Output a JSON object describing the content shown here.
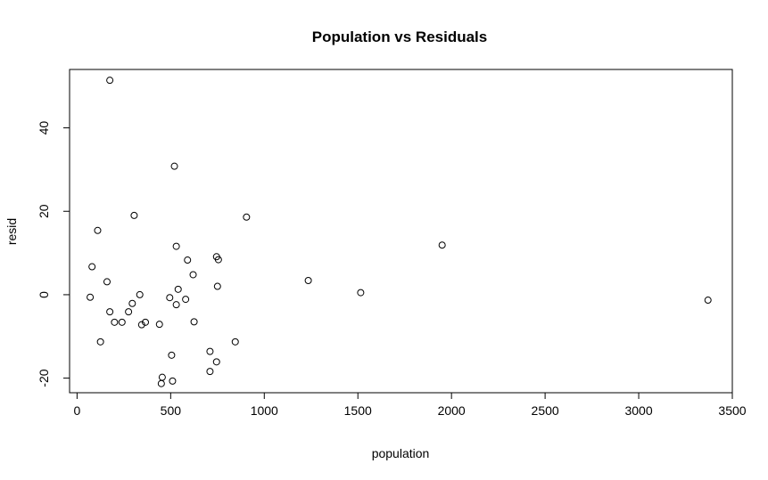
{
  "chart_data": {
    "type": "scatter",
    "title": "Population vs Residuals",
    "xlabel": "population",
    "ylabel": "resid",
    "xlim": [
      -40,
      3500
    ],
    "ylim": [
      -23.5,
      54
    ],
    "xticks": [
      0,
      500,
      1000,
      1500,
      2000,
      2500,
      3000,
      3500
    ],
    "yticks": [
      -20,
      0,
      20,
      40
    ],
    "grid": false,
    "points": [
      {
        "x": 175,
        "y": 51.4
      },
      {
        "x": 520,
        "y": 30.8
      },
      {
        "x": 305,
        "y": 19.0
      },
      {
        "x": 905,
        "y": 18.6
      },
      {
        "x": 110,
        "y": 15.4
      },
      {
        "x": 1950,
        "y": 11.9
      },
      {
        "x": 530,
        "y": 11.6
      },
      {
        "x": 745,
        "y": 9.1
      },
      {
        "x": 755,
        "y": 8.4
      },
      {
        "x": 590,
        "y": 8.3
      },
      {
        "x": 80,
        "y": 6.7
      },
      {
        "x": 620,
        "y": 4.8
      },
      {
        "x": 160,
        "y": 3.1
      },
      {
        "x": 1235,
        "y": 3.4
      },
      {
        "x": 750,
        "y": 2.0
      },
      {
        "x": 540,
        "y": 1.3
      },
      {
        "x": 1515,
        "y": 0.5
      },
      {
        "x": 335,
        "y": 0.0
      },
      {
        "x": 70,
        "y": -0.6
      },
      {
        "x": 495,
        "y": -0.7
      },
      {
        "x": 580,
        "y": -1.1
      },
      {
        "x": 3370,
        "y": -1.3
      },
      {
        "x": 295,
        "y": -2.1
      },
      {
        "x": 530,
        "y": -2.4
      },
      {
        "x": 275,
        "y": -4.1
      },
      {
        "x": 175,
        "y": -4.1
      },
      {
        "x": 200,
        "y": -6.6
      },
      {
        "x": 240,
        "y": -6.6
      },
      {
        "x": 365,
        "y": -6.6
      },
      {
        "x": 625,
        "y": -6.5
      },
      {
        "x": 345,
        "y": -7.2
      },
      {
        "x": 440,
        "y": -7.1
      },
      {
        "x": 125,
        "y": -11.3
      },
      {
        "x": 845,
        "y": -11.3
      },
      {
        "x": 710,
        "y": -13.6
      },
      {
        "x": 505,
        "y": -14.5
      },
      {
        "x": 745,
        "y": -16.1
      },
      {
        "x": 710,
        "y": -18.4
      },
      {
        "x": 455,
        "y": -19.8
      },
      {
        "x": 510,
        "y": -20.7
      },
      {
        "x": 450,
        "y": -21.3
      }
    ]
  }
}
